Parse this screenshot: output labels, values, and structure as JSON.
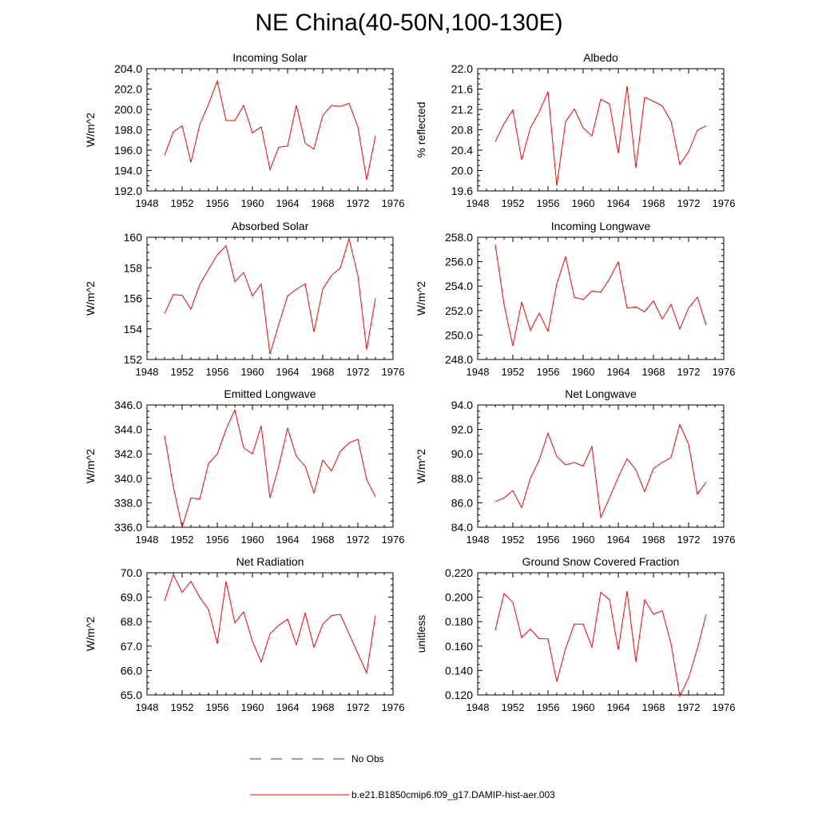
{
  "title": "NE China(40-50N,100-130E)",
  "colors": {
    "model_line": "#ff0000",
    "obs_line": "#3030c8",
    "frame": "#000000"
  },
  "legend": {
    "obs_label": "No Obs",
    "model_label": "b.e21.B1850cmip6.f09_g17.DAMIP-hist-aer.003"
  },
  "chart_data": [
    {
      "type": "line",
      "title": "Incoming Solar",
      "ylabel": "W/m^2",
      "xlim": [
        1948,
        1976
      ],
      "ylim": [
        192.0,
        204.0
      ],
      "xticks": [
        1948,
        1952,
        1956,
        1960,
        1964,
        1968,
        1972,
        1976
      ],
      "yticks": [
        "192.0",
        "194.0",
        "196.0",
        "198.0",
        "200.0",
        "202.0",
        "204.0"
      ],
      "x": [
        1950,
        1951,
        1952,
        1953,
        1954,
        1955,
        1956,
        1957,
        1958,
        1959,
        1960,
        1961,
        1962,
        1963,
        1964,
        1965,
        1966,
        1967,
        1968,
        1969,
        1970,
        1971,
        1972,
        1973,
        1974
      ],
      "series": [
        {
          "values": [
            195.5,
            197.8,
            198.4,
            194.8,
            198.5,
            200.5,
            202.8,
            198.9,
            198.9,
            200.4,
            197.7,
            198.3,
            194.1,
            196.3,
            196.4,
            200.4,
            196.7,
            196.1,
            199.4,
            200.4,
            200.3,
            200.6,
            198.3,
            193.1,
            197.4
          ]
        }
      ]
    },
    {
      "type": "line",
      "title": "Albedo",
      "ylabel": "% reflected",
      "xlim": [
        1948,
        1976
      ],
      "ylim": [
        19.6,
        22.0
      ],
      "xticks": [
        1948,
        1952,
        1956,
        1960,
        1964,
        1968,
        1972,
        1976
      ],
      "yticks": [
        "19.6",
        "20.0",
        "20.4",
        "20.8",
        "21.2",
        "21.6",
        "22.0"
      ],
      "x": [
        1950,
        1951,
        1952,
        1953,
        1954,
        1955,
        1956,
        1957,
        1958,
        1959,
        1960,
        1961,
        1962,
        1963,
        1964,
        1965,
        1966,
        1967,
        1968,
        1969,
        1970,
        1971,
        1972,
        1973,
        1974
      ],
      "series": [
        {
          "values": [
            20.57,
            20.92,
            21.19,
            20.21,
            20.84,
            21.15,
            21.55,
            19.7,
            20.96,
            21.21,
            20.84,
            20.68,
            21.4,
            21.31,
            20.34,
            21.66,
            20.05,
            21.44,
            21.36,
            21.27,
            20.97,
            20.12,
            20.37,
            20.79,
            20.88
          ]
        }
      ]
    },
    {
      "type": "line",
      "title": "Absorbed Solar",
      "ylabel": "W/m^2",
      "xlim": [
        1948,
        1976
      ],
      "ylim": [
        152,
        160
      ],
      "xticks": [
        1948,
        1952,
        1956,
        1960,
        1964,
        1968,
        1972,
        1976
      ],
      "yticks": [
        "152",
        "154",
        "156",
        "158",
        "160"
      ],
      "x": [
        1950,
        1951,
        1952,
        1953,
        1954,
        1955,
        1956,
        1957,
        1958,
        1959,
        1960,
        1961,
        1962,
        1963,
        1964,
        1965,
        1966,
        1967,
        1968,
        1969,
        1970,
        1971,
        1972,
        1973,
        1974
      ],
      "series": [
        {
          "values": [
            155.0,
            156.25,
            156.2,
            155.3,
            156.9,
            157.9,
            158.85,
            159.45,
            157.1,
            157.7,
            156.15,
            156.95,
            152.35,
            154.3,
            156.15,
            156.6,
            156.95,
            153.8,
            156.6,
            157.5,
            158.0,
            159.9,
            157.5,
            152.65,
            156.0
          ]
        }
      ]
    },
    {
      "type": "line",
      "title": "Incoming Longwave",
      "ylabel": "W/m^2",
      "xlim": [
        1948,
        1976
      ],
      "ylim": [
        248.0,
        258.0
      ],
      "xticks": [
        1948,
        1952,
        1956,
        1960,
        1964,
        1968,
        1972,
        1976
      ],
      "yticks": [
        "248.0",
        "250.0",
        "252.0",
        "254.0",
        "256.0",
        "258.0"
      ],
      "x": [
        1950,
        1951,
        1952,
        1953,
        1954,
        1955,
        1956,
        1957,
        1958,
        1959,
        1960,
        1961,
        1962,
        1963,
        1964,
        1965,
        1966,
        1967,
        1968,
        1969,
        1970,
        1971,
        1972,
        1973,
        1974
      ],
      "series": [
        {
          "values": [
            257.4,
            252.5,
            249.1,
            252.7,
            250.4,
            251.8,
            250.3,
            254.2,
            256.4,
            253.1,
            252.9,
            253.6,
            253.5,
            254.6,
            256.0,
            252.2,
            252.3,
            251.9,
            252.8,
            251.3,
            252.5,
            250.5,
            252.2,
            253.1,
            250.8
          ]
        }
      ]
    },
    {
      "type": "line",
      "title": "Emitted Longwave",
      "ylabel": "W/m^2",
      "xlim": [
        1948,
        1976
      ],
      "ylim": [
        336.0,
        346.0
      ],
      "xticks": [
        1948,
        1952,
        1956,
        1960,
        1964,
        1968,
        1972,
        1976
      ],
      "yticks": [
        "336.0",
        "338.0",
        "340.0",
        "342.0",
        "344.0",
        "346.0"
      ],
      "x": [
        1950,
        1951,
        1952,
        1953,
        1954,
        1955,
        1956,
        1957,
        1958,
        1959,
        1960,
        1961,
        1962,
        1963,
        1964,
        1965,
        1966,
        1967,
        1968,
        1969,
        1970,
        1971,
        1972,
        1973,
        1974
      ],
      "series": [
        {
          "values": [
            343.5,
            339.3,
            336.0,
            338.4,
            338.3,
            341.2,
            342.0,
            344.0,
            345.6,
            342.5,
            342.0,
            344.3,
            338.4,
            341.0,
            344.1,
            341.8,
            341.0,
            338.8,
            341.5,
            340.6,
            342.2,
            342.9,
            343.2,
            339.9,
            338.5
          ]
        }
      ]
    },
    {
      "type": "line",
      "title": "Net Longwave",
      "ylabel": "W/m^2",
      "xlim": [
        1948,
        1976
      ],
      "ylim": [
        84.0,
        94.0
      ],
      "xticks": [
        1948,
        1952,
        1956,
        1960,
        1964,
        1968,
        1972,
        1976
      ],
      "yticks": [
        "84.0",
        "86.0",
        "88.0",
        "90.0",
        "92.0",
        "94.0"
      ],
      "x": [
        1950,
        1951,
        1952,
        1953,
        1954,
        1955,
        1956,
        1957,
        1958,
        1959,
        1960,
        1961,
        1962,
        1963,
        1964,
        1965,
        1966,
        1967,
        1968,
        1969,
        1970,
        1971,
        1972,
        1973,
        1974
      ],
      "series": [
        {
          "values": [
            86.1,
            86.4,
            87.0,
            85.6,
            88.0,
            89.5,
            91.7,
            89.8,
            89.1,
            89.3,
            89.0,
            90.6,
            84.8,
            86.4,
            88.1,
            89.6,
            88.7,
            86.9,
            88.8,
            89.3,
            89.7,
            92.4,
            90.8,
            86.7,
            87.7
          ]
        }
      ]
    },
    {
      "type": "line",
      "title": "Net Radiation",
      "ylabel": "W/m^2",
      "xlim": [
        1948,
        1976
      ],
      "ylim": [
        65.0,
        70.0
      ],
      "xticks": [
        1948,
        1952,
        1956,
        1960,
        1964,
        1968,
        1972,
        1976
      ],
      "yticks": [
        "65.0",
        "66.0",
        "67.0",
        "68.0",
        "69.0",
        "70.0"
      ],
      "x": [
        1950,
        1951,
        1952,
        1953,
        1954,
        1955,
        1956,
        1957,
        1958,
        1959,
        1960,
        1961,
        1962,
        1963,
        1964,
        1965,
        1966,
        1967,
        1968,
        1969,
        1970,
        1971,
        1972,
        1973,
        1974
      ],
      "series": [
        {
          "values": [
            68.85,
            69.92,
            69.2,
            69.65,
            69.0,
            68.5,
            67.1,
            69.65,
            67.95,
            68.4,
            67.2,
            66.35,
            67.5,
            67.85,
            68.1,
            67.05,
            68.35,
            66.95,
            67.9,
            68.25,
            68.3,
            null,
            null,
            65.9,
            68.25
          ]
        }
      ]
    },
    {
      "type": "line",
      "title": "Ground Snow Covered Fraction",
      "ylabel": "unitless",
      "xlim": [
        1948,
        1976
      ],
      "ylim": [
        0.12,
        0.22
      ],
      "xticks": [
        1948,
        1952,
        1956,
        1960,
        1964,
        1968,
        1972,
        1976
      ],
      "yticks": [
        "0.120",
        "0.140",
        "0.160",
        "0.180",
        "0.200",
        "0.220"
      ],
      "x": [
        1950,
        1951,
        1952,
        1953,
        1954,
        1955,
        1956,
        1957,
        1958,
        1959,
        1960,
        1961,
        1962,
        1963,
        1964,
        1965,
        1966,
        1967,
        1968,
        1969,
        1970,
        1971,
        1972,
        1973,
        1974
      ],
      "series": [
        {
          "values": [
            0.173,
            0.203,
            0.196,
            0.167,
            0.174,
            0.166,
            0.166,
            0.131,
            0.158,
            0.178,
            0.178,
            0.159,
            0.204,
            0.198,
            0.157,
            0.205,
            0.147,
            0.198,
            0.186,
            0.189,
            0.162,
            0.119,
            0.134,
            0.158,
            0.186
          ]
        }
      ]
    }
  ]
}
